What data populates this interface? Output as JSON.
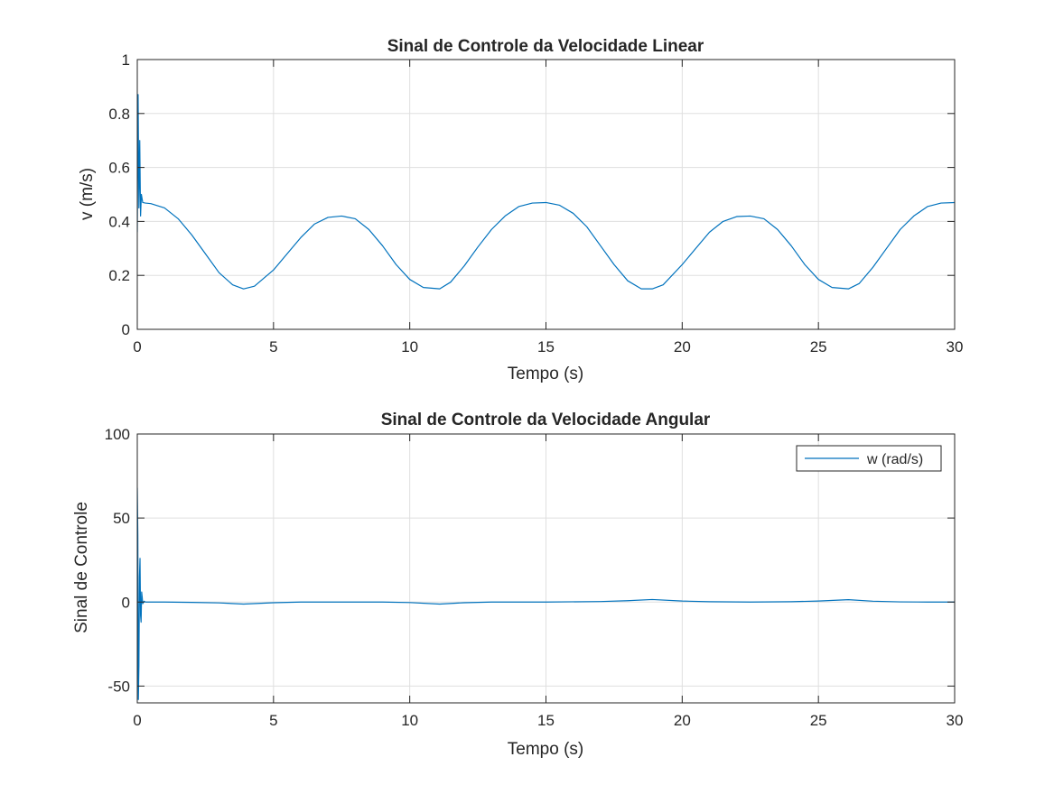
{
  "chart_data": [
    {
      "type": "line",
      "title": "Sinal de Controle da Velocidade Linear",
      "xlabel": "Tempo (s)",
      "ylabel": "v (m/s)",
      "xlim": [
        0,
        30
      ],
      "ylim": [
        0,
        1
      ],
      "xticks": [
        "0",
        "5",
        "10",
        "15",
        "20",
        "25",
        "30"
      ],
      "yticks": [
        "0",
        "0.2",
        "0.4",
        "0.6",
        "0.8",
        "1"
      ],
      "grid": true,
      "series": [
        {
          "color": "#0072BD",
          "x": [
            0.0,
            0.03,
            0.06,
            0.09,
            0.12,
            0.15,
            0.2,
            0.3,
            0.5,
            1.0,
            1.5,
            2.0,
            2.5,
            3.0,
            3.5,
            3.9,
            4.3,
            5.0,
            5.5,
            6.0,
            6.5,
            7.0,
            7.5,
            8.0,
            8.5,
            9.0,
            9.5,
            10.0,
            10.5,
            11.1,
            11.5,
            12.0,
            12.5,
            13.0,
            13.5,
            14.0,
            14.5,
            15.0,
            15.5,
            16.0,
            16.5,
            17.0,
            17.5,
            18.0,
            18.5,
            18.9,
            19.3,
            20.0,
            20.5,
            21.0,
            21.5,
            22.0,
            22.5,
            23.0,
            23.5,
            24.0,
            24.5,
            25.0,
            25.5,
            26.1,
            26.5,
            27.0,
            27.5,
            28.0,
            28.5,
            29.0,
            29.5,
            30.0
          ],
          "y": [
            0.36,
            0.87,
            0.45,
            0.7,
            0.42,
            0.5,
            0.47,
            0.468,
            0.466,
            0.45,
            0.41,
            0.35,
            0.28,
            0.21,
            0.165,
            0.15,
            0.16,
            0.22,
            0.28,
            0.34,
            0.39,
            0.415,
            0.42,
            0.41,
            0.37,
            0.31,
            0.24,
            0.185,
            0.155,
            0.15,
            0.175,
            0.235,
            0.305,
            0.37,
            0.42,
            0.455,
            0.468,
            0.47,
            0.46,
            0.43,
            0.38,
            0.31,
            0.24,
            0.18,
            0.15,
            0.15,
            0.165,
            0.24,
            0.3,
            0.36,
            0.4,
            0.418,
            0.42,
            0.41,
            0.37,
            0.31,
            0.24,
            0.185,
            0.155,
            0.15,
            0.17,
            0.23,
            0.3,
            0.37,
            0.42,
            0.455,
            0.468,
            0.47
          ]
        }
      ]
    },
    {
      "type": "line",
      "title": "Sinal de Controle da Velocidade Angular",
      "xlabel": "Tempo (s)",
      "ylabel": "Sinal de Controle",
      "xlim": [
        0,
        30
      ],
      "ylim": [
        -60,
        100
      ],
      "xticks": [
        "0",
        "5",
        "10",
        "15",
        "20",
        "25",
        "30"
      ],
      "yticks": [
        "-50",
        "0",
        "50",
        "100"
      ],
      "grid": true,
      "legend": {
        "position": "top-right",
        "entries": [
          "w (rad/s)"
        ]
      },
      "series": [
        {
          "name": "w (rad/s)",
          "color": "#0072BD",
          "x": [
            0.0,
            0.02,
            0.04,
            0.06,
            0.08,
            0.1,
            0.12,
            0.14,
            0.16,
            0.18,
            0.2,
            0.25,
            0.3,
            0.5,
            1.0,
            2.0,
            3.0,
            3.9,
            5.0,
            6.0,
            7.5,
            9.0,
            10.0,
            11.1,
            12.0,
            13.0,
            15.0,
            17.0,
            18.0,
            18.9,
            20.0,
            21.0,
            22.5,
            24.0,
            25.0,
            26.1,
            27.0,
            28.0,
            29.0,
            30.0
          ],
          "y": [
            68,
            40,
            -58,
            -38,
            15,
            26,
            -8,
            -12,
            6,
            3,
            -1,
            0.5,
            0,
            0,
            0,
            -0.2,
            -0.5,
            -1.2,
            -0.4,
            0,
            0,
            0,
            -0.3,
            -1.2,
            -0.4,
            0,
            0,
            0.3,
            0.8,
            1.5,
            0.6,
            0.2,
            0,
            0.2,
            0.6,
            1.4,
            0.5,
            0.1,
            0,
            0
          ]
        }
      ]
    }
  ]
}
